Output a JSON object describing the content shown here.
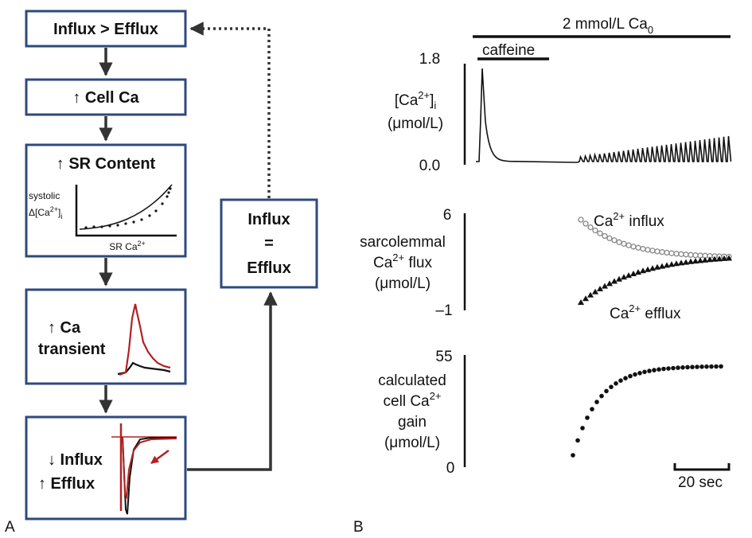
{
  "panel_a": {
    "label": "A",
    "box1": "Influx > Efflux",
    "box2": "↑ Cell Ca",
    "box3": "↑ SR Content",
    "box3_inset_ylabel_1": "systolic",
    "box3_inset_ylabel_2": "Δ[Ca",
    "box3_inset_ylabel_sup": "2+",
    "box3_inset_ylabel_3": "]",
    "box3_inset_ylabel_sub": "i",
    "box3_inset_xlabel": "SR Ca",
    "box3_inset_xlabel_sup": "2+",
    "box4_line1": "↑ Ca",
    "box4_line2": "transient",
    "box5_line1": "↓ Influx",
    "box5_line2": "↑ Efflux",
    "side_line1": "Influx",
    "side_line2": "=",
    "side_line3": "Efflux",
    "colors": {
      "box_border": "#2e4a7d",
      "red_trace": "#b22222"
    }
  },
  "panel_b": {
    "label": "B",
    "top_bar_label": "2 mmol/L Ca",
    "top_bar_sub": "0",
    "caffeine_label": "caffeine",
    "trace1": {
      "ylabel_1": "[Ca",
      "ylabel_sup": "2+",
      "ylabel_2": "]",
      "ylabel_sub": "i",
      "ylabel_units": "(μmol/L)",
      "ymax": "1.8",
      "ymin": "0.0"
    },
    "trace2": {
      "ylabel_1": "sarcolemmal",
      "ylabel_2a": "Ca",
      "ylabel_2sup": "2+",
      "ylabel_2b": " flux",
      "ylabel_3": "(μmol/L)",
      "ymax": "6",
      "ymin": "–1",
      "influx_a": "Ca",
      "influx_sup": "2+",
      "influx_b": " influx",
      "efflux_a": "Ca",
      "efflux_sup": "2+",
      "efflux_b": " efflux"
    },
    "trace3": {
      "ylabel_1": "calculated",
      "ylabel_2a": "cell Ca",
      "ylabel_2sup": "2+",
      "ylabel_3": "gain",
      "ylabel_4": "(μmol/L)",
      "ymax": "55",
      "ymin": "0"
    },
    "scale_bar_label": "20 sec"
  }
}
